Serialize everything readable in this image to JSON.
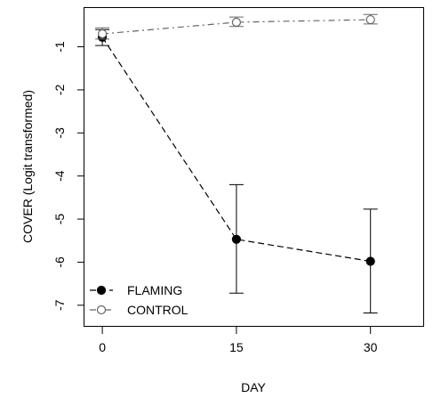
{
  "chart_data": {
    "type": "line",
    "title": "",
    "xlabel": "DAY",
    "ylabel": "COVER (Logit transformed)",
    "x": [
      0,
      15,
      30
    ],
    "x_tick_labels": [
      "0",
      "15",
      "30"
    ],
    "y_tick_values": [
      -1,
      -2,
      -3,
      -4,
      -5,
      -6,
      -7
    ],
    "y_tick_labels": [
      "-1",
      "-2",
      "-3",
      "-4",
      "-5",
      "-6",
      "-7"
    ],
    "xlim": [
      -2,
      36
    ],
    "ylim": [
      -7.5,
      -0.1
    ],
    "grid": false,
    "legend_position": "bottom-left",
    "series": [
      {
        "name": "FLAMING",
        "marker": "filled-circle",
        "line_style": "dashed",
        "color": "#000000",
        "values": [
          -0.78,
          -5.47,
          -5.98
        ],
        "error_lower": [
          -0.97,
          -6.72,
          -7.18
        ],
        "error_upper": [
          -0.6,
          -4.2,
          -4.77
        ]
      },
      {
        "name": "CONTROL",
        "marker": "open-circle",
        "line_style": "dash-dot",
        "color": "#666666",
        "values": [
          -0.7,
          -0.43,
          -0.37
        ],
        "error_lower": [
          -0.82,
          -0.53,
          -0.47
        ],
        "error_upper": [
          -0.56,
          -0.31,
          -0.25
        ]
      }
    ]
  }
}
